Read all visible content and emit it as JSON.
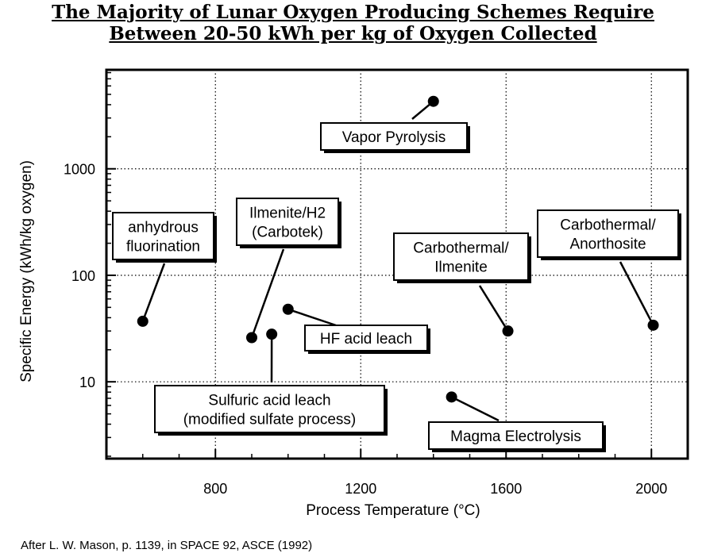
{
  "chart_data": {
    "type": "scatter",
    "title": [
      "The Majority of Lunar Oxygen Producing Schemes Require",
      "Between 20-50 kWh per kg of Oxygen Collected"
    ],
    "xlabel": "Process Temperature (°C)",
    "ylabel": "Specific Energy (kWh/kg oxygen)",
    "x_scale": "linear",
    "y_scale": "log",
    "xlim": [
      500,
      2100
    ],
    "ylim": [
      1.9,
      8500
    ],
    "x_ticks": [
      800,
      1200,
      1600,
      2000
    ],
    "x_tick_labels": [
      "800",
      "1200",
      "1600",
      "2000"
    ],
    "y_ticks": [
      10,
      100,
      1000
    ],
    "y_tick_labels": [
      "10",
      "100",
      "1000"
    ],
    "grid": "dotted",
    "points": [
      {
        "x": 600,
        "y": 37,
        "label": [
          "anhydrous",
          "fluorination"
        ]
      },
      {
        "x": 900,
        "y": 26,
        "label": [
          "Ilmenite/H2",
          "(Carbotek)"
        ]
      },
      {
        "x": 955,
        "y": 28,
        "label": [
          "Sulfuric acid leach",
          "(modified sulfate process)"
        ]
      },
      {
        "x": 1000,
        "y": 48,
        "label": [
          "HF acid leach"
        ]
      },
      {
        "x": 1400,
        "y": 4300,
        "label": [
          "Vapor Pyrolysis"
        ]
      },
      {
        "x": 1450,
        "y": 7.2,
        "label": [
          "Magma Electrolysis"
        ]
      },
      {
        "x": 1605,
        "y": 30,
        "label": [
          "Carbothermal/",
          "Ilmenite"
        ]
      },
      {
        "x": 2005,
        "y": 34,
        "label": [
          "Carbothermal/",
          "Anorthosite"
        ]
      }
    ],
    "caption": "After  L. W. Mason, p. 1139, in SPACE 92, ASCE (1992)"
  }
}
